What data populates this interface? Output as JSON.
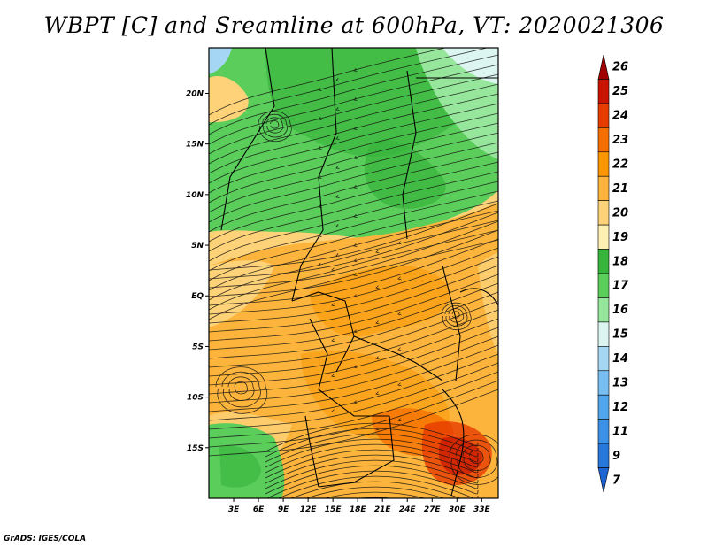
{
  "title": "WBPT [C] and Sreamline at 600hPa, VT: 2020021306",
  "credit": "GrADS: IGES/COLA",
  "map": {
    "lat_labels": [
      "20N",
      "15N",
      "10N",
      "5N",
      "EQ",
      "5S",
      "10S",
      "15S"
    ],
    "lat_values": [
      20,
      15,
      10,
      5,
      0,
      -5,
      -10,
      -15
    ],
    "lon_labels": [
      "3E",
      "6E",
      "9E",
      "12E",
      "15E",
      "18E",
      "21E",
      "24E",
      "27E",
      "30E",
      "33E"
    ],
    "lon_values": [
      3,
      6,
      9,
      12,
      15,
      18,
      21,
      24,
      27,
      30,
      33
    ],
    "lat_range": [
      -20,
      24.5
    ],
    "lon_range": [
      0,
      35
    ]
  },
  "colorbar": {
    "labels": [
      "26",
      "25",
      "24",
      "23",
      "22",
      "21",
      "20",
      "19",
      "18",
      "17",
      "16",
      "15",
      "14",
      "13",
      "12",
      "11",
      "9",
      "7"
    ],
    "colors": [
      "#a00000",
      "#c81400",
      "#e63c00",
      "#f56e00",
      "#fa9600",
      "#fcb43c",
      "#fdd278",
      "#fff0b4",
      "#37b43c",
      "#5acd5a",
      "#96e69b",
      "#dcf5f0",
      "#a5d7f5",
      "#78bef0",
      "#50a5eb",
      "#3c91e6",
      "#2878dc",
      "#1e64d2"
    ]
  }
}
